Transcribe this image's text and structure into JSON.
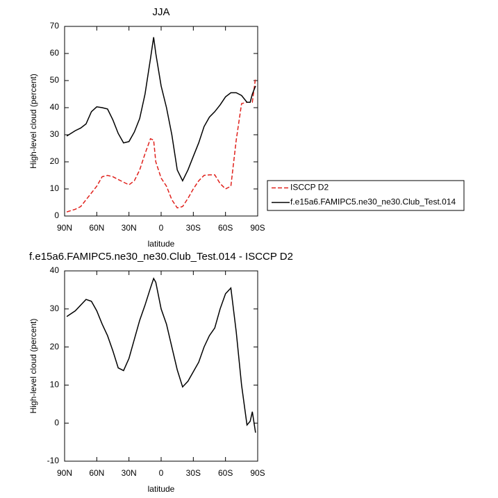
{
  "chart_data": [
    {
      "type": "line",
      "title": "JJA",
      "xlabel": "latitude",
      "ylabel": "High-level cloud (percent)",
      "x": [
        88,
        80,
        75,
        70,
        65,
        60,
        55,
        50,
        45,
        40,
        35,
        30,
        25,
        20,
        15,
        10,
        7,
        5,
        0,
        -5,
        -10,
        -15,
        -20,
        -25,
        -30,
        -35,
        -40,
        -45,
        -50,
        -55,
        -60,
        -65,
        -70,
        -75,
        -80,
        -83,
        -85,
        -88
      ],
      "series": [
        {
          "name": "ISCCP D2",
          "color": "#e0201b",
          "dash": true,
          "values": [
            1.5,
            2.5,
            3.5,
            6,
            8.5,
            11,
            14.5,
            15,
            14.5,
            13.5,
            12.5,
            11.5,
            13,
            17,
            23,
            28.5,
            28,
            20,
            14,
            11,
            6,
            3,
            3.5,
            6.5,
            10,
            13,
            15,
            15.2,
            15.2,
            12,
            10,
            11,
            28,
            41.5,
            42,
            42,
            42,
            51
          ]
        },
        {
          "name": "f.e15a6.FAMIPC5.ne30_ne30.Club_Test.014",
          "color": "#000000",
          "dash": false,
          "values": [
            29.5,
            31.5,
            32.5,
            34,
            38.5,
            40.3,
            40,
            39.5,
            35.5,
            30.5,
            27,
            27.5,
            31,
            36,
            45,
            58,
            66,
            60,
            48,
            40,
            30,
            17,
            13,
            17,
            22,
            27,
            33,
            36.5,
            38.5,
            41,
            44,
            45.5,
            45.5,
            44.5,
            42,
            42,
            45,
            48
          ]
        }
      ],
      "xlim": [
        90,
        -90
      ],
      "xticks": [
        {
          "value": 90,
          "label": "90N"
        },
        {
          "value": 60,
          "label": "60N"
        },
        {
          "value": 30,
          "label": "30N"
        },
        0,
        {
          "value": -30,
          "label": "30S"
        },
        {
          "value": -60,
          "label": "60S"
        },
        {
          "value": -90,
          "label": "90S"
        }
      ],
      "ylim": [
        0,
        70
      ],
      "yticks": [
        0,
        10,
        20,
        30,
        40,
        50,
        60,
        70
      ],
      "legend": "outside-right"
    },
    {
      "type": "line",
      "title": "f.e15a6.FAMIPC5.ne30_ne30.Club_Test.014 - ISCCP D2",
      "xlabel": "latitude",
      "ylabel": "High-level cloud (percent)",
      "x": [
        88,
        80,
        70,
        65,
        60,
        55,
        50,
        45,
        40,
        35,
        30,
        25,
        20,
        15,
        10,
        7,
        5,
        0,
        -5,
        -10,
        -15,
        -20,
        -25,
        -30,
        -35,
        -40,
        -45,
        -50,
        -55,
        -60,
        -65,
        -70,
        -75,
        -80,
        -83,
        -85,
        -88
      ],
      "series": [
        {
          "color": "#000000",
          "dash": false,
          "values": [
            28,
            29.5,
            32.5,
            32,
            29.5,
            26,
            23,
            19,
            14.5,
            13.8,
            17,
            22,
            27,
            31,
            35.5,
            38,
            37,
            30,
            26,
            20,
            14,
            9.5,
            11,
            13.5,
            16,
            20,
            23,
            25,
            30,
            34,
            35.5,
            24,
            10,
            -0.5,
            0.5,
            3,
            -2.5
          ]
        }
      ],
      "xlim": [
        90,
        -90
      ],
      "xticks": [
        {
          "value": 90,
          "label": "90N"
        },
        {
          "value": 60,
          "label": "60N"
        },
        {
          "value": 30,
          "label": "30N"
        },
        0,
        {
          "value": -30,
          "label": "30S"
        },
        {
          "value": -60,
          "label": "60S"
        },
        {
          "value": -90,
          "label": "90S"
        }
      ],
      "ylim": [
        -10,
        40
      ],
      "yticks": [
        -10,
        0,
        10,
        20,
        30,
        40
      ]
    }
  ]
}
